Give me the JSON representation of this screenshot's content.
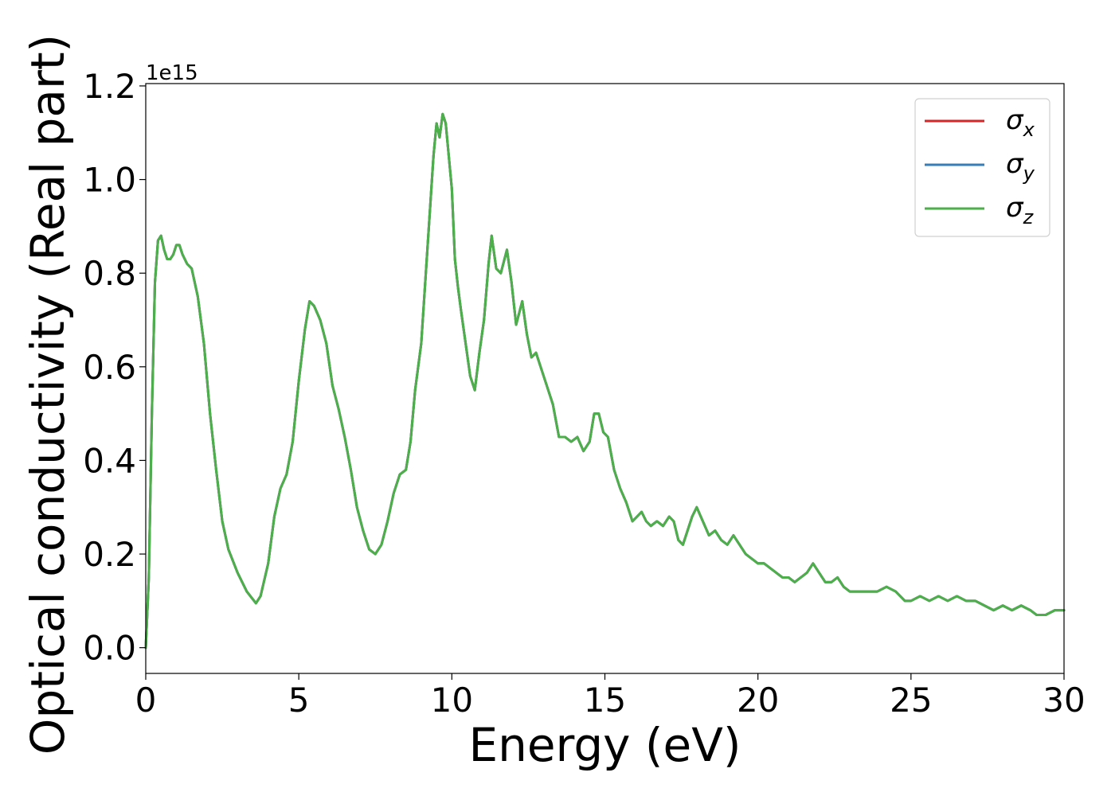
{
  "chart_data": {
    "type": "line",
    "xlabel": "Energy (eV)",
    "ylabel": "Optical conductivity (Real part)",
    "offset_label": "1e15",
    "xlim": [
      0,
      30
    ],
    "ylim": [
      -0.055,
      1.205
    ],
    "y_scale_factor": 1000000000000000.0,
    "grid": false,
    "legend_position": "top-right",
    "x_ticks": [
      {
        "value": 0,
        "label": "0"
      },
      {
        "value": 5,
        "label": "5"
      },
      {
        "value": 10,
        "label": "10"
      },
      {
        "value": 15,
        "label": "15"
      },
      {
        "value": 20,
        "label": "20"
      },
      {
        "value": 25,
        "label": "25"
      },
      {
        "value": 30,
        "label": "30"
      }
    ],
    "y_ticks": [
      {
        "value": 0.0,
        "label": "0.0"
      },
      {
        "value": 0.2,
        "label": "0.2"
      },
      {
        "value": 0.4,
        "label": "0.4"
      },
      {
        "value": 0.6,
        "label": "0.6"
      },
      {
        "value": 0.8,
        "label": "0.8"
      },
      {
        "value": 1.0,
        "label": "1.0"
      },
      {
        "value": 1.2,
        "label": "1.2"
      }
    ],
    "series": [
      {
        "name": "σx",
        "base": "σ",
        "sub": "x",
        "color": "#d62728",
        "same_as": "σz"
      },
      {
        "name": "σy",
        "base": "σ",
        "sub": "y",
        "color": "#377eb8",
        "same_as": "σz"
      },
      {
        "name": "σz",
        "base": "σ",
        "sub": "z",
        "color": "#4daf4a",
        "x": [
          0,
          0.1,
          0.2,
          0.3,
          0.4,
          0.5,
          0.6,
          0.7,
          0.8,
          0.9,
          1.0,
          1.1,
          1.2,
          1.35,
          1.5,
          1.7,
          1.9,
          2.1,
          2.3,
          2.5,
          2.7,
          3.0,
          3.3,
          3.6,
          3.75,
          4.0,
          4.2,
          4.4,
          4.6,
          4.8,
          5.0,
          5.2,
          5.35,
          5.5,
          5.7,
          5.9,
          6.1,
          6.3,
          6.5,
          6.7,
          6.9,
          7.1,
          7.3,
          7.5,
          7.7,
          7.9,
          8.1,
          8.3,
          8.5,
          8.65,
          8.8,
          9.0,
          9.2,
          9.4,
          9.5,
          9.6,
          9.7,
          9.8,
          9.9,
          10.0,
          10.1,
          10.2,
          10.3,
          10.45,
          10.6,
          10.75,
          10.9,
          11.05,
          11.2,
          11.3,
          11.45,
          11.6,
          11.8,
          11.95,
          12.1,
          12.3,
          12.45,
          12.6,
          12.75,
          12.9,
          13.1,
          13.3,
          13.5,
          13.7,
          13.9,
          14.1,
          14.3,
          14.5,
          14.65,
          14.8,
          14.95,
          15.1,
          15.3,
          15.5,
          15.7,
          15.9,
          16.05,
          16.2,
          16.35,
          16.5,
          16.7,
          16.9,
          17.1,
          17.25,
          17.4,
          17.55,
          17.7,
          17.85,
          18.0,
          18.2,
          18.4,
          18.6,
          18.8,
          19.0,
          19.2,
          19.4,
          19.6,
          19.8,
          20.0,
          20.2,
          20.4,
          20.6,
          20.8,
          21.0,
          21.2,
          21.4,
          21.6,
          21.8,
          22.0,
          22.2,
          22.4,
          22.6,
          22.8,
          23.0,
          23.3,
          23.6,
          23.9,
          24.2,
          24.5,
          24.8,
          25.0,
          25.3,
          25.6,
          25.9,
          26.2,
          26.5,
          26.8,
          27.1,
          27.4,
          27.7,
          28.0,
          28.3,
          28.6,
          28.9,
          29.1,
          29.4,
          29.7,
          30.0
        ],
        "y": [
          0.0,
          0.15,
          0.5,
          0.78,
          0.87,
          0.88,
          0.85,
          0.83,
          0.83,
          0.84,
          0.86,
          0.86,
          0.84,
          0.82,
          0.81,
          0.75,
          0.65,
          0.5,
          0.38,
          0.27,
          0.21,
          0.16,
          0.12,
          0.095,
          0.11,
          0.18,
          0.28,
          0.34,
          0.37,
          0.44,
          0.57,
          0.68,
          0.74,
          0.73,
          0.7,
          0.65,
          0.56,
          0.51,
          0.45,
          0.38,
          0.3,
          0.25,
          0.21,
          0.2,
          0.22,
          0.27,
          0.33,
          0.37,
          0.38,
          0.44,
          0.55,
          0.65,
          0.85,
          1.05,
          1.12,
          1.09,
          1.14,
          1.12,
          1.05,
          0.98,
          0.83,
          0.77,
          0.72,
          0.65,
          0.58,
          0.55,
          0.63,
          0.7,
          0.82,
          0.88,
          0.81,
          0.8,
          0.85,
          0.78,
          0.69,
          0.74,
          0.67,
          0.62,
          0.63,
          0.6,
          0.56,
          0.52,
          0.45,
          0.45,
          0.44,
          0.45,
          0.42,
          0.44,
          0.5,
          0.5,
          0.46,
          0.45,
          0.38,
          0.34,
          0.31,
          0.27,
          0.28,
          0.29,
          0.27,
          0.26,
          0.27,
          0.26,
          0.28,
          0.27,
          0.23,
          0.22,
          0.25,
          0.28,
          0.3,
          0.27,
          0.24,
          0.25,
          0.23,
          0.22,
          0.24,
          0.22,
          0.2,
          0.19,
          0.18,
          0.18,
          0.17,
          0.16,
          0.15,
          0.15,
          0.14,
          0.15,
          0.16,
          0.18,
          0.16,
          0.14,
          0.14,
          0.15,
          0.13,
          0.12,
          0.12,
          0.12,
          0.12,
          0.13,
          0.12,
          0.1,
          0.1,
          0.11,
          0.1,
          0.11,
          0.1,
          0.11,
          0.1,
          0.1,
          0.09,
          0.08,
          0.09,
          0.08,
          0.09,
          0.08,
          0.07,
          0.07,
          0.08,
          0.08
        ]
      }
    ]
  }
}
